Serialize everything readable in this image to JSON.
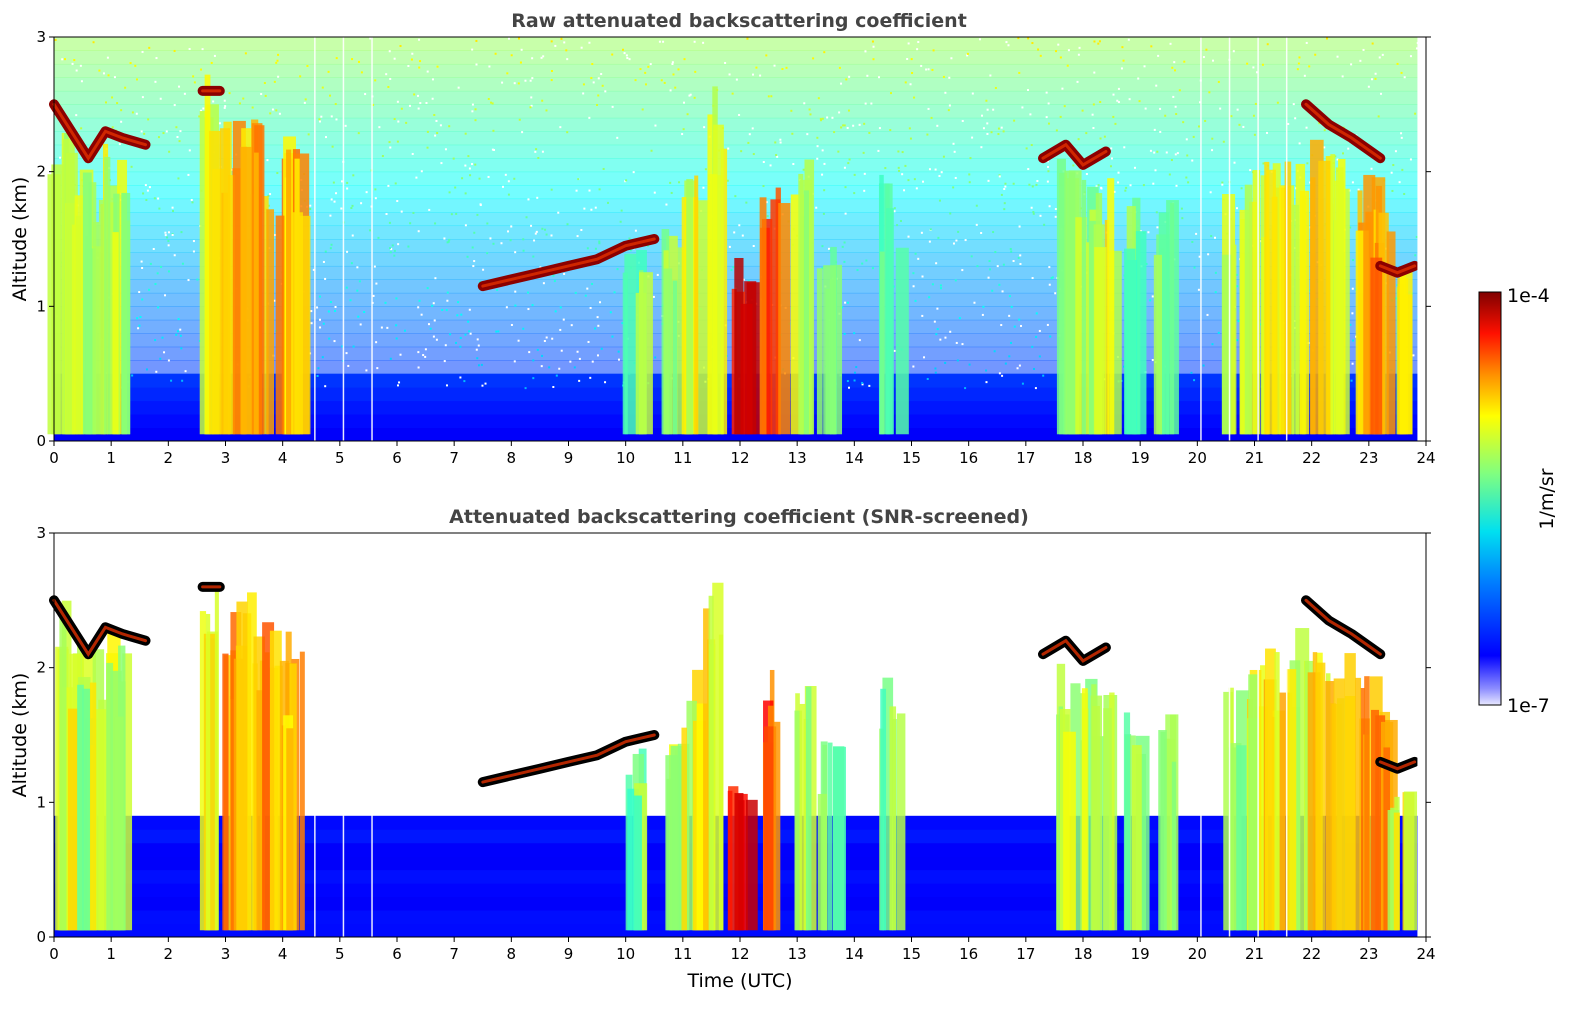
{
  "chart_data": [
    {
      "type": "heatmap",
      "title": "Raw attenuated backscattering coefficient",
      "xlabel": "",
      "ylabel": "Altitude (km)",
      "xlim": [
        0,
        24
      ],
      "ylim": [
        0,
        3
      ],
      "x_ticks": [
        "0",
        "1",
        "2",
        "3",
        "4",
        "5",
        "6",
        "7",
        "8",
        "9",
        "10",
        "11",
        "12",
        "13",
        "14",
        "15",
        "16",
        "17",
        "18",
        "19",
        "20",
        "21",
        "22",
        "23",
        "24"
      ],
      "y_ticks": [
        "0",
        "1",
        "2",
        "3"
      ],
      "screened": false,
      "cloud_base_layers": [
        {
          "x": [
            0.0,
            0.3,
            0.6,
            0.9,
            1.2,
            1.6
          ],
          "y": [
            2.5,
            2.3,
            2.1,
            2.3,
            2.25,
            2.2
          ]
        },
        {
          "x": [
            2.6,
            2.9
          ],
          "y": [
            2.6,
            2.6
          ]
        },
        {
          "x": [
            7.5,
            8.0,
            8.5,
            9.0,
            9.5,
            10.0,
            10.5
          ],
          "y": [
            1.15,
            1.2,
            1.25,
            1.3,
            1.35,
            1.45,
            1.5
          ]
        },
        {
          "x": [
            17.3,
            17.7,
            18.0,
            18.4
          ],
          "y": [
            2.1,
            2.2,
            2.05,
            2.15
          ]
        },
        {
          "x": [
            21.9,
            22.3,
            22.7,
            23.2
          ],
          "y": [
            2.5,
            2.35,
            2.25,
            2.1
          ]
        },
        {
          "x": [
            23.2,
            23.5,
            23.8
          ],
          "y": [
            1.3,
            1.25,
            1.3
          ]
        }
      ],
      "note_gaps_x": [
        4.55,
        5.05,
        5.55,
        20.05,
        20.55,
        21.05,
        21.55
      ]
    },
    {
      "type": "heatmap",
      "title": "Attenuated backscattering coefficient (SNR-screened)",
      "xlabel": "Time (UTC)",
      "ylabel": "Altitude (km)",
      "xlim": [
        0,
        24
      ],
      "ylim": [
        0,
        3
      ],
      "x_ticks": [
        "0",
        "1",
        "2",
        "3",
        "4",
        "5",
        "6",
        "7",
        "8",
        "9",
        "10",
        "11",
        "12",
        "13",
        "14",
        "15",
        "16",
        "17",
        "18",
        "19",
        "20",
        "21",
        "22",
        "23",
        "24"
      ],
      "y_ticks": [
        "0",
        "1",
        "2",
        "3"
      ],
      "screened": true
    }
  ],
  "colorbar": {
    "label": "1/m/sr",
    "max_label": "1e-4",
    "min_label": "1e-7",
    "scale": "log",
    "range": [
      1e-07,
      0.0001
    ],
    "colormap": "jet"
  },
  "colors": {
    "low": "#0000ff",
    "mid": "#80ff80",
    "high": "#ff3000",
    "peak": "#800000",
    "title_text": "#444444"
  }
}
